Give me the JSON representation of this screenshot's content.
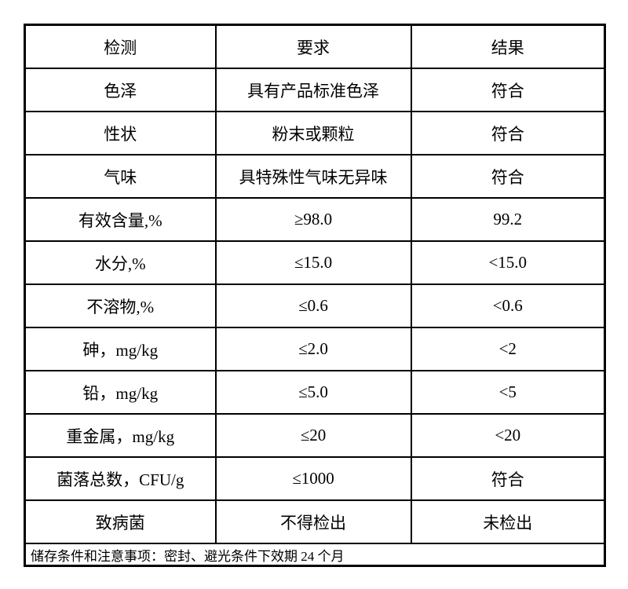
{
  "table": {
    "headers": [
      "检测",
      "要求",
      "结果"
    ],
    "rows": [
      {
        "item": "色泽",
        "requirement": "具有产品标准色泽",
        "result": "符合"
      },
      {
        "item": "性状",
        "requirement": "粉末或颗粒",
        "result": "符合"
      },
      {
        "item": "气味",
        "requirement": "具特殊性气味无异味",
        "result": "符合"
      },
      {
        "item": "有效含量,%",
        "requirement": "≥98.0",
        "result": "99.2"
      },
      {
        "item": "水分,%",
        "requirement": "≤15.0",
        "result": "<15.0"
      },
      {
        "item": "不溶物,%",
        "requirement": "≤0.6",
        "result": "<0.6"
      },
      {
        "item": "砷，mg/kg",
        "requirement": "≤2.0",
        "result": "<2"
      },
      {
        "item": "铅，mg/kg",
        "requirement": "≤5.0",
        "result": "<5"
      },
      {
        "item": "重金属，mg/kg",
        "requirement": "≤20",
        "result": "<20"
      },
      {
        "item": "菌落总数，CFU/g",
        "requirement": "≤1000",
        "result": "符合"
      },
      {
        "item": "致病菌",
        "requirement": "不得检出",
        "result": "未检出"
      }
    ],
    "footer_note": "储存条件和注意事项：密封、避光条件下效期 24 个月"
  },
  "colors": {
    "background": "#ffffff",
    "border": "#000000",
    "text": "#000000"
  }
}
